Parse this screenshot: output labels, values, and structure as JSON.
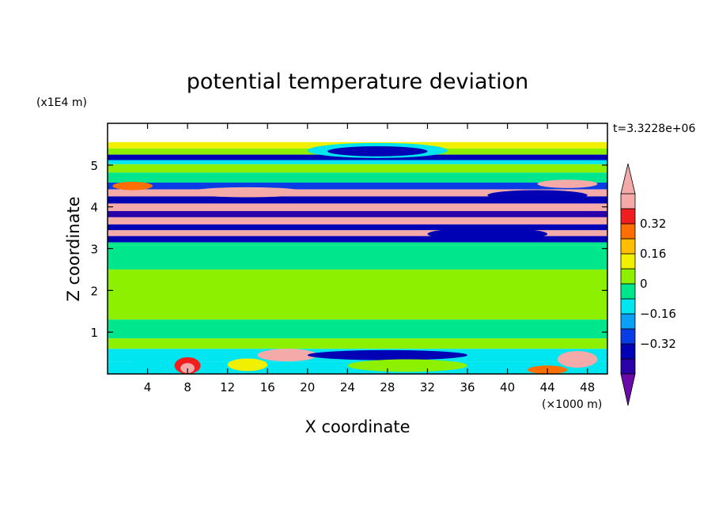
{
  "chart_data": {
    "type": "heatmap",
    "title": "potential temperature deviation",
    "xlabel": "X coordinate",
    "ylabel": "Z coordinate",
    "x_unit": "(×1000 m)",
    "y_unit": "(x1E4 m)",
    "time_label": "t=3.3228e+06",
    "x_range": [
      0,
      50
    ],
    "y_range": [
      0,
      6
    ],
    "x_ticks": [
      4,
      8,
      12,
      16,
      20,
      24,
      28,
      32,
      36,
      40,
      44,
      48
    ],
    "y_ticks": [
      1,
      2,
      3,
      4,
      5
    ],
    "colorbar": {
      "levels": [
        -0.48,
        -0.4,
        -0.32,
        -0.24,
        -0.16,
        -0.08,
        0,
        0.08,
        0.16,
        0.24,
        0.32,
        0.4,
        0.48
      ],
      "tick_labels": [
        {
          "value": 0.32,
          "text": "0.32"
        },
        {
          "value": 0.16,
          "text": "0.16"
        },
        {
          "value": 0,
          "text": "0"
        },
        {
          "value": -0.16,
          "text": "−0.16"
        },
        {
          "value": -0.32,
          "text": "−0.32"
        }
      ],
      "colors": [
        "#6a0aa8",
        "#2a00a8",
        "#0000b4",
        "#0a3ce6",
        "#0aa0f5",
        "#00e6f0",
        "#00e68c",
        "#8cf000",
        "#f0f000",
        "#ffbe00",
        "#ff6e00",
        "#f01e1e",
        "#f5aaaa"
      ],
      "extend": "both"
    },
    "bands": [
      {
        "z": [
          5.4,
          5.55
        ],
        "value": 0.14
      },
      {
        "z": [
          5.25,
          5.4
        ],
        "value": 0.02
      },
      {
        "z": [
          5.12,
          5.25
        ],
        "value": -0.36
      },
      {
        "z": [
          5.02,
          5.12
        ],
        "value": -0.1
      },
      {
        "z": [
          4.82,
          5.02
        ],
        "value": 0.02
      },
      {
        "z": [
          4.58,
          4.82
        ],
        "value": -0.05
      },
      {
        "z": [
          4.42,
          4.58
        ],
        "value": -0.3
      },
      {
        "z": [
          4.25,
          4.42
        ],
        "value": 0.45
      },
      {
        "z": [
          4.08,
          4.25
        ],
        "value": -0.34
      },
      {
        "z": [
          3.9,
          4.08
        ],
        "value": 0.44
      },
      {
        "z": [
          3.75,
          3.9
        ],
        "value": -0.42
      },
      {
        "z": [
          3.58,
          3.75
        ],
        "value": 0.44
      },
      {
        "z": [
          3.44,
          3.58
        ],
        "value": -0.34
      },
      {
        "z": [
          3.3,
          3.44
        ],
        "value": 0.44
      },
      {
        "z": [
          3.15,
          3.3
        ],
        "value": -0.34
      },
      {
        "z": [
          3.08,
          3.15
        ],
        "value": -0.05
      },
      {
        "z": [
          2.5,
          3.08
        ],
        "value": -0.03
      },
      {
        "z": [
          1.3,
          2.5
        ],
        "value": 0.02
      },
      {
        "z": [
          0.85,
          1.3
        ],
        "value": -0.03
      },
      {
        "z": [
          0.6,
          0.85
        ],
        "value": 0.02
      },
      {
        "z": [
          0.3,
          0.6
        ],
        "value": -0.16
      },
      {
        "z": [
          0.0,
          0.3
        ],
        "value": -0.09
      }
    ],
    "blobs": [
      {
        "x": 27,
        "z": 5.35,
        "rx": 7,
        "rz": 0.18,
        "value": -0.1
      },
      {
        "x": 27,
        "z": 5.33,
        "rx": 5,
        "rz": 0.12,
        "value": -0.36
      },
      {
        "x": 14,
        "z": 4.35,
        "rx": 6,
        "rz": 0.12,
        "value": 0.44
      },
      {
        "x": 43,
        "z": 4.28,
        "rx": 5,
        "rz": 0.12,
        "value": -0.34
      },
      {
        "x": 2.5,
        "z": 4.5,
        "rx": 2,
        "rz": 0.1,
        "value": 0.24
      },
      {
        "x": 46,
        "z": 4.55,
        "rx": 3,
        "rz": 0.1,
        "value": 0.44
      },
      {
        "x": 38,
        "z": 3.35,
        "rx": 6,
        "rz": 0.15,
        "value": -0.4
      },
      {
        "x": 18,
        "z": 0.45,
        "rx": 3,
        "rz": 0.15,
        "value": 0.44
      },
      {
        "x": 5,
        "z": 0.3,
        "rx": 2.5,
        "rz": 0.22,
        "value": -0.1
      },
      {
        "x": 8,
        "z": 0.2,
        "rx": 1.3,
        "rz": 0.2,
        "value": 0.32
      },
      {
        "x": 8,
        "z": 0.14,
        "rx": 0.7,
        "rz": 0.12,
        "value": 0.4
      },
      {
        "x": 14,
        "z": 0.22,
        "rx": 2,
        "rz": 0.15,
        "value": 0.14
      },
      {
        "x": 28,
        "z": 0.45,
        "rx": 8,
        "rz": 0.12,
        "value": -0.36
      },
      {
        "x": 30,
        "z": 0.2,
        "rx": 6,
        "rz": 0.15,
        "value": 0.02
      },
      {
        "x": 44,
        "z": 0.1,
        "rx": 2,
        "rz": 0.1,
        "value": 0.24
      },
      {
        "x": 47,
        "z": 0.35,
        "rx": 2,
        "rz": 0.2,
        "value": 0.44
      }
    ]
  }
}
